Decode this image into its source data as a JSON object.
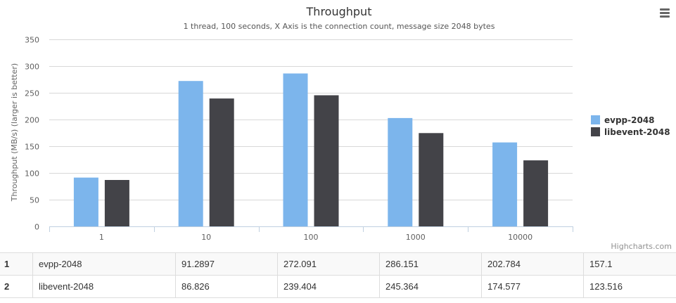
{
  "chart_data": {
    "type": "bar",
    "title": "Throughput",
    "subtitle": "1 thread, 100 seconds, X Axis is the connection count, message size 2048 bytes",
    "xlabel": "",
    "ylabel": "Throughput (MB/s) (larger is better)",
    "categories": [
      "1",
      "10",
      "100",
      "1000",
      "10000"
    ],
    "ylim": [
      0,
      350
    ],
    "yticks": [
      "0",
      "50",
      "100",
      "150",
      "200",
      "250",
      "300",
      "350"
    ],
    "grid": true,
    "legend_position": "right",
    "series": [
      {
        "name": "evpp-2048",
        "color": "#7cb5ec",
        "values": [
          91.2897,
          272.091,
          286.151,
          202.784,
          157.1
        ]
      },
      {
        "name": "libevent-2048",
        "color": "#434348",
        "values": [
          86.826,
          239.404,
          245.364,
          174.577,
          123.516
        ]
      }
    ]
  },
  "credits": "Highcharts.com",
  "table": {
    "rows": [
      {
        "index": "1",
        "name": "evpp-2048",
        "cells": [
          "91.2897",
          "272.091",
          "286.151",
          "202.784",
          "157.1"
        ]
      },
      {
        "index": "2",
        "name": "libevent-2048",
        "cells": [
          "86.826",
          "239.404",
          "245.364",
          "174.577",
          "123.516"
        ]
      }
    ]
  },
  "icons": {
    "menu": "hamburger-menu-icon"
  }
}
